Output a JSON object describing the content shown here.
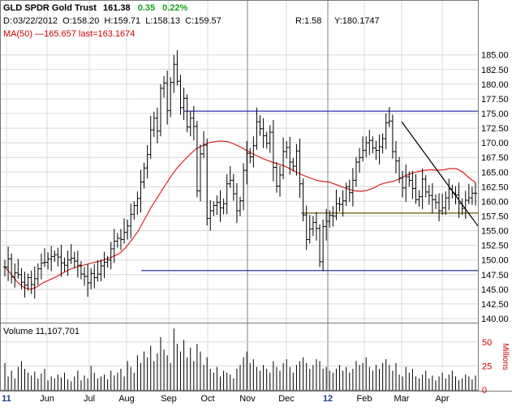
{
  "header": {
    "name": "GLD SPDR Gold Trust",
    "last": "161.38",
    "change": "0.35",
    "change_pct": "0.22%",
    "date_label": "D:",
    "date": "03/22/2012",
    "open_label": "O:",
    "open": "158.20",
    "high_label": "H:",
    "high": "159.71",
    "low_label": "L:",
    "low": "158.13",
    "close_label": "C:",
    "close": "159.57",
    "r_label": "R:",
    "r_value": "1.58",
    "y_label": "Y:",
    "y_value": "180.1747",
    "ma_text": "MA(50) —165.657 last=163.1674",
    "volume_text": "Volume 11,107,701"
  },
  "colors": {
    "price_bars": "#000000",
    "ma_line": "#dd2222",
    "resistance_line": "#3333aa",
    "support_line": "#333399",
    "mid_line": "#665500",
    "trend_line": "#000000",
    "grid": "#d8d8d8",
    "axis_text": "#000000",
    "volume_axis_text": "#cc0000",
    "change_positive": "#1aa01a"
  },
  "chart_data": [
    {
      "type": "ohlc",
      "title": "GLD SPDR Gold Trust",
      "x_tick_labels": [
        "11",
        "Jun",
        "Jul",
        "Aug",
        "Sep",
        "Oct",
        "Nov",
        "Dec",
        "12",
        "Feb",
        "Mar",
        "Apr"
      ],
      "ylim": [
        140.0,
        186.0
      ],
      "y_ticks": [
        140.0,
        142.5,
        145.0,
        147.5,
        150.0,
        152.5,
        155.0,
        157.5,
        160.0,
        162.5,
        165.0,
        167.5,
        170.0,
        172.5,
        175.0,
        177.5,
        180.0,
        182.5,
        185.0
      ],
      "y_tick_labels": [
        "140.00",
        "142.50",
        "145.00",
        "147.50",
        "150.00",
        "152.50",
        "155.00",
        "157.50",
        "160.00",
        "162.50",
        "165.00",
        "167.50",
        "170.00",
        "172.50",
        "175.00",
        "177.50",
        "180.00",
        "182.50",
        "185.00"
      ],
      "closes": [
        148.8,
        150.2,
        147.1,
        147.8,
        147.5,
        146.2,
        145.7,
        147.0,
        145.8,
        146.8,
        148.5,
        149.5,
        149.6,
        150.2,
        150.6,
        150.9,
        150.5,
        149.5,
        149.1,
        150.0,
        150.3,
        149.8,
        149.1,
        147.6,
        147.2,
        146.1,
        147.7,
        147.0,
        147.6,
        149.0,
        149.6,
        150.0,
        151.9,
        153.2,
        153.7,
        153.5,
        154.7,
        155.8,
        157.8,
        159.3,
        160.5,
        163.3,
        165.7,
        168.0,
        172.2,
        174.2,
        172.0,
        179.3,
        180.2,
        175.5,
        180.3,
        183.4,
        180.5,
        176.0,
        177.6,
        172.7,
        174.2,
        172.8,
        161.8,
        168.1,
        169.6,
        157.1,
        158.4,
        159.3,
        159.8,
        158.9,
        159.6,
        163.0,
        163.6,
        161.3,
        158.4,
        160.1,
        165.3,
        168.2,
        167.6,
        169.5,
        173.6,
        172.4,
        171.2,
        169.9,
        171.8,
        165.8,
        162.6,
        164.5,
        168.5,
        169.2,
        166.7,
        166.0,
        168.6,
        163.0,
        157.7,
        153.5,
        155.3,
        156.4,
        155.4,
        149.7,
        155.7,
        156.6,
        157.6,
        157.5,
        159.6,
        159.5,
        160.1,
        162.5,
        161.5,
        163.6,
        166.7,
        167.5,
        168.7,
        170.0,
        170.4,
        169.1,
        168.7,
        169.3,
        170.7,
        173.4,
        173.7,
        168.5,
        166.9,
        164.0,
        162.3,
        164.2,
        163.6,
        162.2,
        160.3,
        160.8,
        163.8,
        161.6,
        161.0,
        160.3,
        159.8,
        158.4,
        158.9,
        160.6,
        162.1,
        161.4,
        161.1,
        159.6,
        158.8,
        160.2,
        160.6,
        161.4,
        161.4
      ],
      "ma50": [
        148.8,
        147.6,
        146.2,
        145.3,
        145.0,
        145.4,
        146.1,
        146.6,
        147.1,
        147.7,
        148.3,
        148.7,
        149.0,
        149.3,
        149.6,
        149.8,
        150.2,
        150.6,
        151.1,
        152.1,
        153.5,
        155.0,
        157.0,
        159.0,
        160.7,
        162.4,
        164.1,
        165.6,
        166.8,
        167.9,
        168.9,
        169.5,
        170.0,
        170.2,
        170.3,
        170.2,
        169.8,
        169.3,
        168.7,
        168.1,
        167.6,
        167.1,
        166.7,
        166.4,
        166.0,
        165.5,
        164.9,
        164.4,
        164.0,
        163.6,
        163.4,
        163.3,
        162.9,
        162.5,
        162.1,
        161.8,
        161.7,
        161.9,
        162.3,
        162.9,
        163.2,
        163.4,
        163.8,
        164.4,
        164.8,
        165.1,
        165.3,
        165.4,
        165.3,
        165.4,
        165.6,
        165.6,
        165.0,
        164.0,
        163.2
      ],
      "resistance_line": {
        "y": 175.4,
        "from_tick": "Sep",
        "to": "end"
      },
      "support_line": {
        "y": 148.2,
        "from_tick": "Aug",
        "to": "end"
      },
      "mid_line": {
        "y": 158.0,
        "from_tick": "Dec",
        "to": "end"
      },
      "trend_line": {
        "y_start": 173.6,
        "y_end": 155.8,
        "from_tick": "Mar",
        "to": "end"
      },
      "vertical_markers": [
        "Nov",
        "12"
      ],
      "volume": {
        "label": "Volume 11,107,701",
        "unit_label": "Millions",
        "ylim": [
          0,
          65
        ],
        "y_ticks": [
          0,
          25,
          50
        ],
        "y_tick_labels": [
          "0",
          "25",
          "50"
        ],
        "values": [
          28,
          14,
          20,
          12,
          24,
          30,
          22,
          18,
          15,
          19,
          12,
          17,
          22,
          10,
          14,
          12,
          16,
          13,
          18,
          11,
          9,
          14,
          20,
          10,
          15,
          12,
          25,
          18,
          12,
          14,
          16,
          11,
          20,
          15,
          18,
          22,
          14,
          30,
          24,
          18,
          36,
          28,
          40,
          34,
          46,
          30,
          38,
          55,
          42,
          36,
          28,
          64,
          48,
          40,
          52,
          34,
          44,
          30,
          48,
          40,
          26,
          34,
          22,
          18,
          24,
          14,
          20,
          18,
          16,
          12,
          22,
          26,
          34,
          40,
          28,
          32,
          24,
          20,
          26,
          22,
          18,
          30,
          24,
          20,
          28,
          32,
          24,
          18,
          26,
          30,
          34,
          28,
          22,
          26,
          32,
          30,
          22,
          24,
          20,
          18,
          22,
          26,
          20,
          24,
          18,
          22,
          30,
          26,
          28,
          34,
          24,
          20,
          26,
          22,
          28,
          32,
          26,
          20,
          28,
          16,
          14,
          24,
          18,
          22,
          14,
          12,
          16,
          20,
          12,
          15,
          10,
          14,
          18,
          12,
          16,
          20,
          14,
          10,
          12,
          16,
          14,
          11,
          15
        ]
      }
    }
  ]
}
